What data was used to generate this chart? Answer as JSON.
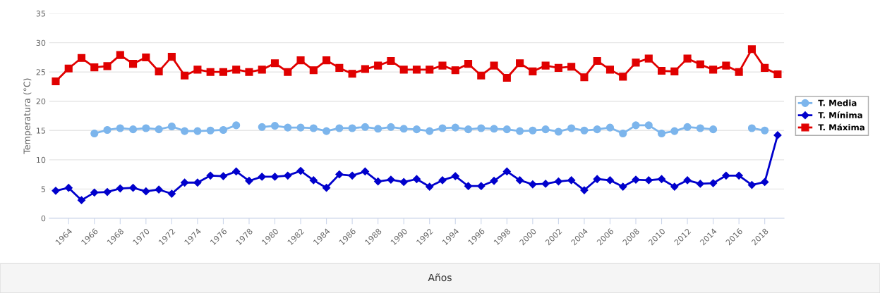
{
  "chart_data": {
    "type": "line",
    "xlabel": "Años",
    "ylabel": "Temperatura (°C)",
    "categories": [
      null,
      "1964",
      null,
      "1966",
      null,
      "1968",
      null,
      "1970",
      null,
      "1972",
      null,
      "1974",
      null,
      "1976",
      null,
      "1978",
      null,
      "1980",
      null,
      "1982",
      null,
      "1984",
      null,
      "1986",
      null,
      "1988",
      null,
      "1990",
      null,
      "1992",
      null,
      "1994",
      null,
      "1996",
      null,
      "1998",
      null,
      "2000",
      null,
      "2002",
      null,
      "2004",
      null,
      "2006",
      null,
      "2008",
      null,
      "2010",
      null,
      "2012",
      null,
      "2014",
      null,
      "2016",
      null,
      "2018",
      null
    ],
    "series": [
      {
        "name": "T. Media",
        "color": "#7cb5ec",
        "marker": "circle",
        "values": [
          null,
          null,
          null,
          14.5,
          15.1,
          15.4,
          15.2,
          15.4,
          15.2,
          15.7,
          14.9,
          14.9,
          15.0,
          15.1,
          15.9,
          null,
          15.6,
          15.8,
          15.5,
          15.5,
          15.4,
          14.9,
          15.4,
          15.4,
          15.6,
          15.3,
          15.6,
          15.3,
          15.2,
          14.9,
          15.4,
          15.5,
          15.2,
          15.4,
          15.3,
          15.2,
          14.9,
          15.0,
          15.2,
          14.8,
          15.4,
          15.0,
          15.2,
          15.5,
          14.5,
          15.9,
          15.9,
          14.5,
          14.9,
          15.6,
          15.4,
          15.2,
          null,
          null,
          15.4,
          15.0,
          null
        ]
      },
      {
        "name": "T. Mínima",
        "color": "#0000cc",
        "marker": "diamond",
        "values": [
          4.7,
          5.2,
          3.1,
          4.4,
          4.5,
          5.1,
          5.2,
          4.6,
          4.9,
          4.2,
          6.1,
          6.1,
          7.3,
          7.2,
          8.0,
          6.4,
          7.1,
          7.1,
          7.3,
          8.1,
          6.5,
          5.2,
          7.5,
          7.3,
          8.0,
          6.3,
          6.6,
          6.2,
          6.7,
          5.4,
          6.5,
          7.2,
          5.5,
          5.5,
          6.4,
          8.0,
          6.5,
          5.8,
          5.9,
          6.3,
          6.5,
          4.8,
          6.7,
          6.5,
          5.4,
          6.6,
          6.5,
          6.7,
          5.4,
          6.5,
          5.9,
          6.0,
          7.3,
          7.3,
          5.7,
          6.2,
          14.2
        ]
      },
      {
        "name": "T. Máxima",
        "color": "#e00000",
        "marker": "square",
        "values": [
          23.4,
          25.6,
          27.4,
          25.8,
          26.0,
          27.9,
          26.4,
          27.5,
          25.1,
          27.6,
          24.4,
          25.4,
          25.0,
          25.0,
          25.4,
          25.0,
          25.4,
          26.5,
          25.0,
          27.0,
          25.3,
          27.0,
          25.7,
          24.7,
          25.5,
          26.1,
          26.9,
          25.4,
          25.4,
          25.4,
          26.1,
          25.3,
          26.4,
          24.4,
          26.1,
          24.0,
          26.5,
          25.1,
          26.1,
          25.7,
          25.9,
          24.1,
          26.9,
          25.4,
          24.2,
          26.6,
          27.3,
          25.2,
          25.1,
          27.3,
          26.3,
          25.4,
          26.1,
          25.0,
          28.9,
          25.7,
          24.6
        ]
      }
    ],
    "ylim": [
      0,
      35
    ],
    "yticks": [
      0,
      5,
      10,
      15,
      20,
      25,
      30,
      35
    ],
    "grid": "y",
    "legend": "right",
    "line_style": "solid"
  }
}
